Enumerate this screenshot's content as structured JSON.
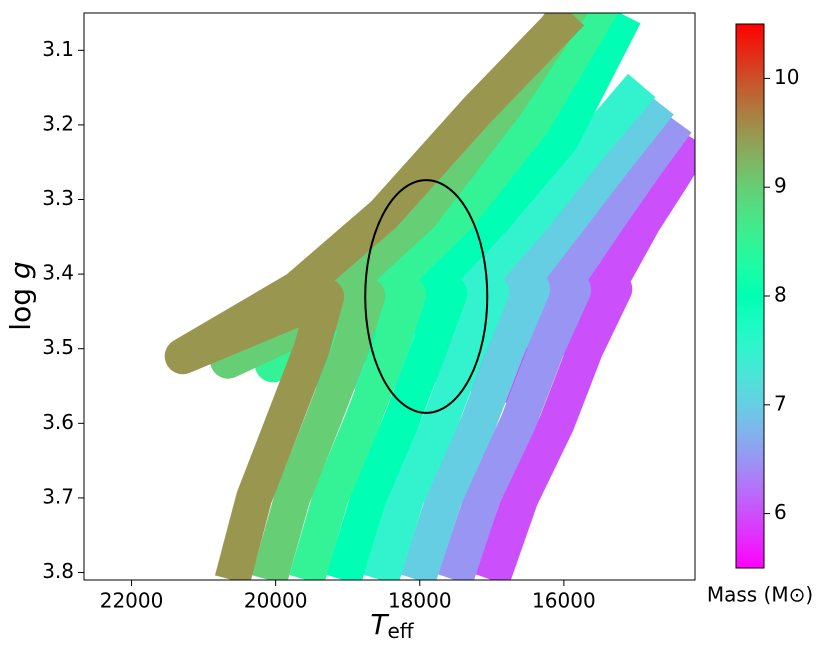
{
  "chart_data": {
    "type": "line",
    "x_label": {
      "symbol": "T",
      "subscript": "eff"
    },
    "y_label": {
      "text": "log",
      "symbol": "g"
    },
    "xlim": [
      22660,
      14180
    ],
    "ylim": [
      3.81,
      3.05
    ],
    "xticks": [
      22000,
      20000,
      18000,
      16000
    ],
    "yticks": [
      3.1,
      3.2,
      3.3,
      3.4,
      3.5,
      3.6,
      3.7,
      3.8
    ],
    "series": [
      {
        "mass": 6.0,
        "x": [
          17000,
          16600,
          16100,
          15700,
          15300,
          16900,
          15300,
          14900,
          14500,
          14180
        ],
        "y": [
          3.81,
          3.7,
          3.6,
          3.5,
          3.42,
          3.55,
          3.4,
          3.33,
          3.27,
          3.22
        ]
      },
      {
        "mass": 6.5,
        "x": [
          17510,
          17130,
          16640,
          16240,
          15870,
          17530,
          15930,
          15410,
          14890,
          14430
        ],
        "y": [
          3.81,
          3.7,
          3.6,
          3.5,
          3.421,
          3.544,
          3.403,
          3.329,
          3.257,
          3.196
        ]
      },
      {
        "mass": 7.0,
        "x": [
          18030,
          17660,
          17190,
          16790,
          16440,
          18150,
          16560,
          15930,
          15270,
          14670
        ],
        "y": [
          3.81,
          3.7,
          3.6,
          3.5,
          3.42,
          3.539,
          3.406,
          3.327,
          3.244,
          3.171
        ]
      },
      {
        "mass": 7.5,
        "x": [
          18540,
          18190,
          17730,
          17330,
          17010,
          18780,
          17190,
          16440,
          15660,
          14920
        ],
        "y": [
          3.81,
          3.7,
          3.6,
          3.5,
          3.424,
          3.533,
          3.409,
          3.326,
          3.231,
          3.147
        ]
      },
      {
        "mass": 8.0,
        "x": [
          19060,
          18710,
          18270,
          17870,
          17590,
          19410,
          17810,
          16960,
          16040,
          15160
        ],
        "y": [
          3.81,
          3.7,
          3.6,
          3.5,
          3.426,
          3.527,
          3.411,
          3.324,
          3.219,
          3.053
        ]
      },
      {
        "mass": 8.5,
        "x": [
          19570,
          19240,
          18810,
          18410,
          18160,
          20040,
          18440,
          17470,
          16430,
          15410
        ],
        "y": [
          3.81,
          3.7,
          3.6,
          3.5,
          3.427,
          3.521,
          3.414,
          3.323,
          3.196,
          3.029
        ]
      },
      {
        "mass": 9.0,
        "x": [
          20090,
          19770,
          19360,
          18960,
          18730,
          20660,
          19070,
          17990,
          16810,
          15650
        ],
        "y": [
          3.81,
          3.7,
          3.6,
          3.5,
          3.429,
          3.516,
          3.417,
          3.321,
          3.173,
          3.004
        ]
      },
      {
        "mass": 9.5,
        "x": [
          20600,
          20300,
          19900,
          19500,
          19300,
          21290,
          19700,
          18500,
          17200,
          15900
        ],
        "y": [
          3.81,
          3.7,
          3.6,
          3.5,
          3.43,
          3.51,
          3.42,
          3.32,
          3.18,
          3.05
        ]
      }
    ],
    "ellipse": {
      "center": [
        17910,
        3.43
      ],
      "width": 1694,
      "height": 0.312,
      "color": "#000000"
    },
    "colorbar": {
      "label": "Mass (M⊙)",
      "lim": [
        5.5,
        10.5
      ],
      "ticks": [
        6,
        7,
        8,
        9,
        10
      ],
      "colormap": "rainbow"
    }
  }
}
